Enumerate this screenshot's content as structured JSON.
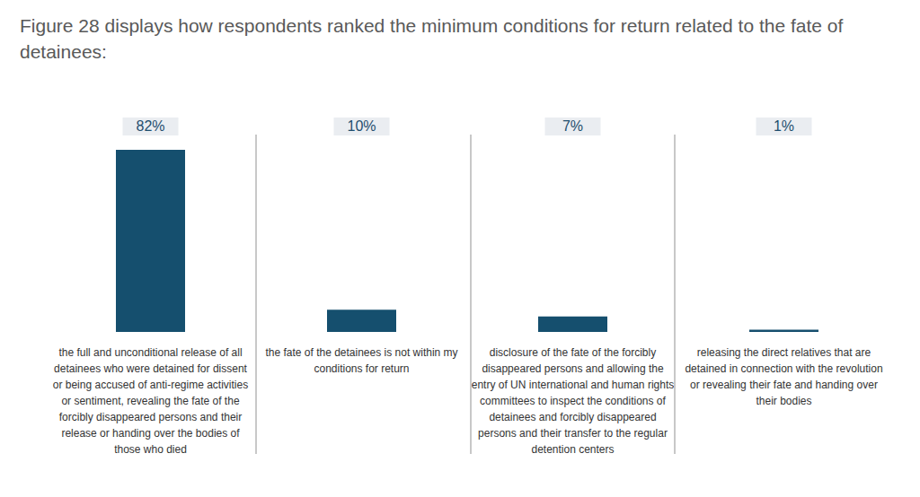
{
  "chart_data": {
    "type": "bar",
    "title": "Figure 28 displays how respondents ranked the minimum conditions for return related to the fate of detainees:",
    "categories": [
      "the full and unconditional release of all detainees who were detained for dissent or being accused of anti-regime activities or sentiment, revealing the fate of the forcibly disappeared persons and their release or handing over the bodies of those who died",
      "the fate of the detainees is not within my conditions for return",
      "disclosure of the fate of the forcibly disappeared persons and allowing the entry of UN international and human rights committees to inspect the conditions of detainees and forcibly disappeared persons and their transfer to the regular detention centers",
      "releasing the direct relatives that are detained in connection with the revolution or revealing their fate and handing over their bodies"
    ],
    "values": [
      82,
      10,
      7,
      1
    ],
    "value_labels": [
      "82%",
      "10%",
      "7%",
      "1%"
    ],
    "color": "#154f6e",
    "data_labels": true,
    "tick_labels": false
  }
}
